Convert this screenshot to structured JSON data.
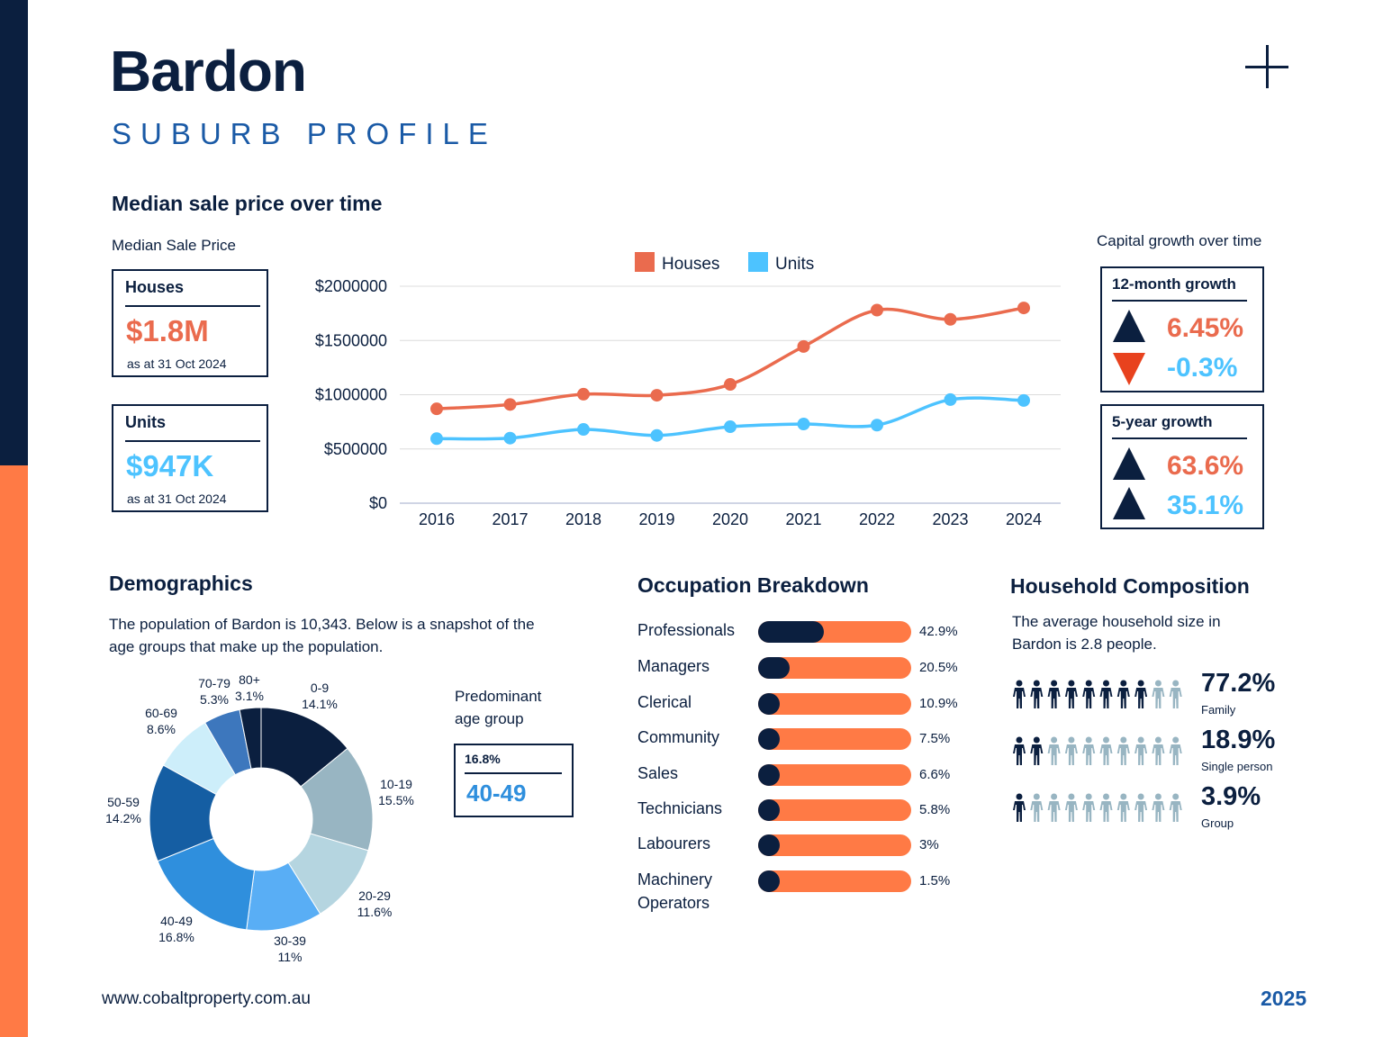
{
  "header": {
    "title": "Bardon",
    "subtitle": "SUBURB PROFILE"
  },
  "median": {
    "heading": "Median sale price over time",
    "sub_label": "Median Sale Price",
    "houses": {
      "label": "Houses",
      "value": "$1.8M",
      "date": "as at 31 Oct 2024"
    },
    "units": {
      "label": "Units",
      "value": "$947K",
      "date": "as at 31 Oct 2024"
    }
  },
  "growth": {
    "caption": "Capital growth over time",
    "twelve_month": {
      "label": "12-month growth",
      "houses": "6.45%",
      "units": "-0.3%"
    },
    "five_year": {
      "label": "5-year growth",
      "houses": "63.6%",
      "units": "35.1%"
    }
  },
  "chart_data": [
    {
      "type": "line",
      "x": [
        "2016",
        "2017",
        "2018",
        "2019",
        "2020",
        "2021",
        "2022",
        "2023",
        "2024"
      ],
      "series": [
        {
          "name": "Houses",
          "color": "#ea6b4e",
          "values": [
            870000,
            910000,
            1005000,
            995000,
            1095000,
            1445000,
            1780000,
            1695000,
            1800000
          ]
        },
        {
          "name": "Units",
          "color": "#4dc3ff",
          "values": [
            595000,
            600000,
            680000,
            625000,
            705000,
            730000,
            720000,
            955000,
            947000
          ]
        }
      ],
      "yticks": [
        "$2000000",
        "$1500000",
        "$1000000",
        "$500000",
        "$0"
      ],
      "ylim": [
        0,
        2000000
      ],
      "grid": true,
      "legend": "top"
    },
    {
      "type": "pie",
      "donut": true,
      "slices": [
        {
          "label": "0-9",
          "pct": "14.1%",
          "value": 14.1,
          "color": "#0b1f3f"
        },
        {
          "label": "10-19",
          "pct": "15.5%",
          "value": 15.5,
          "color": "#98b5c2"
        },
        {
          "label": "20-29",
          "pct": "11.6%",
          "value": 11.6,
          "color": "#b5d5e0"
        },
        {
          "label": "30-39",
          "pct": "11%",
          "value": 11,
          "color": "#59aef5"
        },
        {
          "label": "40-49",
          "pct": "16.8%",
          "value": 16.8,
          "color": "#2f8fdd"
        },
        {
          "label": "50-59",
          "pct": "14.2%",
          "value": 14.2,
          "color": "#155ea3"
        },
        {
          "label": "60-69",
          "pct": "8.6%",
          "value": 8.6,
          "color": "#cdeefa"
        },
        {
          "label": "70-79",
          "pct": "5.3%",
          "value": 5.3,
          "color": "#3d77bd"
        },
        {
          "label": "80+",
          "pct": "3.1%",
          "value": 3.1,
          "color": "#0b1f3f"
        }
      ]
    }
  ],
  "demographics": {
    "heading": "Demographics",
    "desc_line1": "The population of Bardon is 10,343. Below is a snapshot of the",
    "desc_line2": "age groups that make up the population.",
    "predominant_line1": "Predominant",
    "predominant_line2": "age group",
    "predominant_pct": "16.8%",
    "predominant_group": "40-49"
  },
  "occupation": {
    "heading": "Occupation Breakdown",
    "items": [
      {
        "label": "Professionals",
        "pct": "42.9%",
        "fill": 0.429
      },
      {
        "label": "Managers",
        "pct": "20.5%",
        "fill": 0.205
      },
      {
        "label": "Clerical",
        "pct": "10.9%",
        "fill": 0.109
      },
      {
        "label": "Community",
        "pct": "7.5%",
        "fill": 0.075
      },
      {
        "label": "Sales",
        "pct": "6.6%",
        "fill": 0.066
      },
      {
        "label": "Technicians",
        "pct": "5.8%",
        "fill": 0.058
      },
      {
        "label": "Labourers",
        "pct": "3%",
        "fill": 0.03
      },
      {
        "label": "Machinery",
        "label2": "Operators",
        "pct": "1.5%",
        "fill": 0.015
      }
    ]
  },
  "household": {
    "heading": "Household Composition",
    "desc_line1": "The average household size in",
    "desc_line2": "Bardon is 2.8 people.",
    "rows": [
      {
        "pct": "77.2%",
        "label": "Family",
        "dark": 8
      },
      {
        "pct": "18.9%",
        "label": "Single person",
        "dark": 2
      },
      {
        "pct": "3.9%",
        "label": "Group",
        "dark": 1
      }
    ]
  },
  "footer": {
    "url": "www.cobaltproperty.com.au",
    "year": "2025"
  }
}
